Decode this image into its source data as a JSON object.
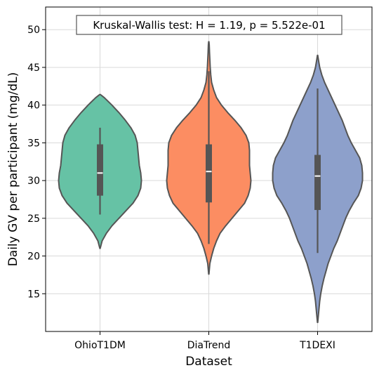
{
  "chart_data": {
    "type": "violin",
    "title": "",
    "xlabel": "Dataset",
    "ylabel": "Daily GV per participant (mg/dL)",
    "ylim": [
      10,
      53
    ],
    "yticks": [
      15,
      20,
      25,
      30,
      35,
      40,
      45,
      50
    ],
    "grid": true,
    "annotation": "Kruskal-Wallis test: H = 1.19, p = 5.522e-01",
    "categories": [
      "OhioT1DM",
      "DiaTrend",
      "T1DEXI"
    ],
    "series": [
      {
        "color": "#66c2a5",
        "min": 21,
        "max": 41.4,
        "whisker_low": 25.5,
        "q1": 28,
        "median": 31,
        "q3": 34.8,
        "whisker_high": 37,
        "profile": [
          [
            21,
            0.2
          ],
          [
            22,
            3
          ],
          [
            23,
            9
          ],
          [
            24,
            17
          ],
          [
            25,
            27
          ],
          [
            26,
            37
          ],
          [
            27,
            47
          ],
          [
            28,
            54
          ],
          [
            29,
            58
          ],
          [
            30,
            59
          ],
          [
            31,
            58
          ],
          [
            32,
            56
          ],
          [
            33,
            55
          ],
          [
            34,
            54
          ],
          [
            35,
            53
          ],
          [
            36,
            50
          ],
          [
            37,
            44
          ],
          [
            38,
            36
          ],
          [
            39,
            27
          ],
          [
            40,
            17
          ],
          [
            41,
            6
          ],
          [
            41.4,
            0.5
          ]
        ]
      },
      {
        "color": "#fc8d62",
        "min": 17.6,
        "max": 48.4,
        "whisker_low": 21.6,
        "q1": 27.1,
        "median": 31.2,
        "q3": 34.8,
        "whisker_high": 44.5,
        "profile": [
          [
            17.6,
            0.2
          ],
          [
            19,
            1.5
          ],
          [
            20,
            4
          ],
          [
            21,
            7
          ],
          [
            22,
            11
          ],
          [
            23,
            16
          ],
          [
            24,
            24
          ],
          [
            25,
            33
          ],
          [
            26,
            42
          ],
          [
            27,
            51
          ],
          [
            28,
            56
          ],
          [
            29,
            59
          ],
          [
            30,
            60
          ],
          [
            31,
            59
          ],
          [
            32,
            58
          ],
          [
            33,
            58
          ],
          [
            34,
            58
          ],
          [
            35,
            57
          ],
          [
            36,
            53
          ],
          [
            37,
            46
          ],
          [
            38,
            37
          ],
          [
            39,
            27
          ],
          [
            40,
            18
          ],
          [
            41,
            11
          ],
          [
            42,
            7
          ],
          [
            43,
            4
          ],
          [
            44,
            2.8
          ],
          [
            45,
            2
          ],
          [
            46,
            1.5
          ],
          [
            47,
            1
          ],
          [
            48,
            0.6
          ],
          [
            48.4,
            0.2
          ]
        ]
      },
      {
        "color": "#8da0cb",
        "min": 11.2,
        "max": 46.6,
        "whisker_low": 20.4,
        "q1": 26.1,
        "median": 30.6,
        "q3": 33.4,
        "whisker_high": 42.2,
        "profile": [
          [
            11.2,
            0.2
          ],
          [
            12,
            1
          ],
          [
            13,
            2
          ],
          [
            14,
            3
          ],
          [
            15,
            4.5
          ],
          [
            16,
            6.5
          ],
          [
            17,
            9
          ],
          [
            18,
            12
          ],
          [
            19,
            15
          ],
          [
            20,
            19
          ],
          [
            21,
            23
          ],
          [
            22,
            28
          ],
          [
            23,
            32
          ],
          [
            24,
            36
          ],
          [
            25,
            40
          ],
          [
            26,
            45
          ],
          [
            27,
            51
          ],
          [
            28,
            58
          ],
          [
            29,
            62
          ],
          [
            30,
            64
          ],
          [
            31,
            64
          ],
          [
            32,
            63
          ],
          [
            33,
            60
          ],
          [
            34,
            54
          ],
          [
            35,
            48
          ],
          [
            36,
            43
          ],
          [
            37,
            39
          ],
          [
            38,
            35
          ],
          [
            39,
            30
          ],
          [
            40,
            25
          ],
          [
            41,
            20
          ],
          [
            42,
            15
          ],
          [
            43,
            10
          ],
          [
            44,
            6
          ],
          [
            45,
            3
          ],
          [
            46,
            1.2
          ],
          [
            46.6,
            0.2
          ]
        ]
      }
    ]
  }
}
